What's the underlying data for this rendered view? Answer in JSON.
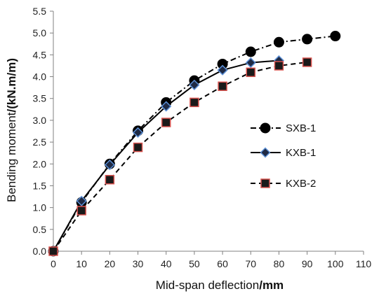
{
  "chart_data": {
    "type": "line",
    "xlabel": {
      "main": "Mid-span deflection",
      "unit": "/mm"
    },
    "ylabel": {
      "main": "Bending moment",
      "unit": "/(kN.m/m)"
    },
    "xlim": [
      0,
      110
    ],
    "ylim": [
      0.0,
      5.5
    ],
    "xticks": [
      "0",
      "10",
      "20",
      "30",
      "40",
      "50",
      "60",
      "70",
      "80",
      "90",
      "100",
      "110"
    ],
    "yticks": [
      "0.0",
      "0.5",
      "1.0",
      "1.5",
      "2.0",
      "2.5",
      "3.0",
      "3.5",
      "4.0",
      "4.5",
      "5.0",
      "5.5"
    ],
    "grid": false,
    "legend": "right",
    "series": [
      {
        "name": "SXB-1",
        "marker": "circle",
        "line": "dash-dot",
        "color": "#000000",
        "x": [
          0,
          10,
          20,
          30,
          40,
          50,
          60,
          70,
          80,
          90,
          100
        ],
        "y": [
          0.0,
          1.12,
          2.0,
          2.76,
          3.41,
          3.91,
          4.29,
          4.57,
          4.79,
          4.86,
          4.93
        ]
      },
      {
        "name": "KXB-1",
        "marker": "diamond",
        "line": "solid",
        "color": "#000000",
        "marker_fill": "#1f2a44",
        "marker_edge": "#5b8fd6",
        "x": [
          0,
          10,
          20,
          30,
          40,
          50,
          60,
          70,
          80
        ],
        "y": [
          0.0,
          1.15,
          1.98,
          2.72,
          3.32,
          3.81,
          4.15,
          4.32,
          4.37
        ]
      },
      {
        "name": "KXB-2",
        "marker": "square",
        "line": "dashed",
        "color": "#000000",
        "marker_fill": "#1a1a1a",
        "marker_edge": "#d9534f",
        "x": [
          0,
          10,
          20,
          30,
          40,
          50,
          60,
          70,
          80,
          90
        ],
        "y": [
          0.0,
          0.93,
          1.64,
          2.38,
          2.95,
          3.41,
          3.78,
          4.1,
          4.25,
          4.33
        ]
      }
    ]
  }
}
